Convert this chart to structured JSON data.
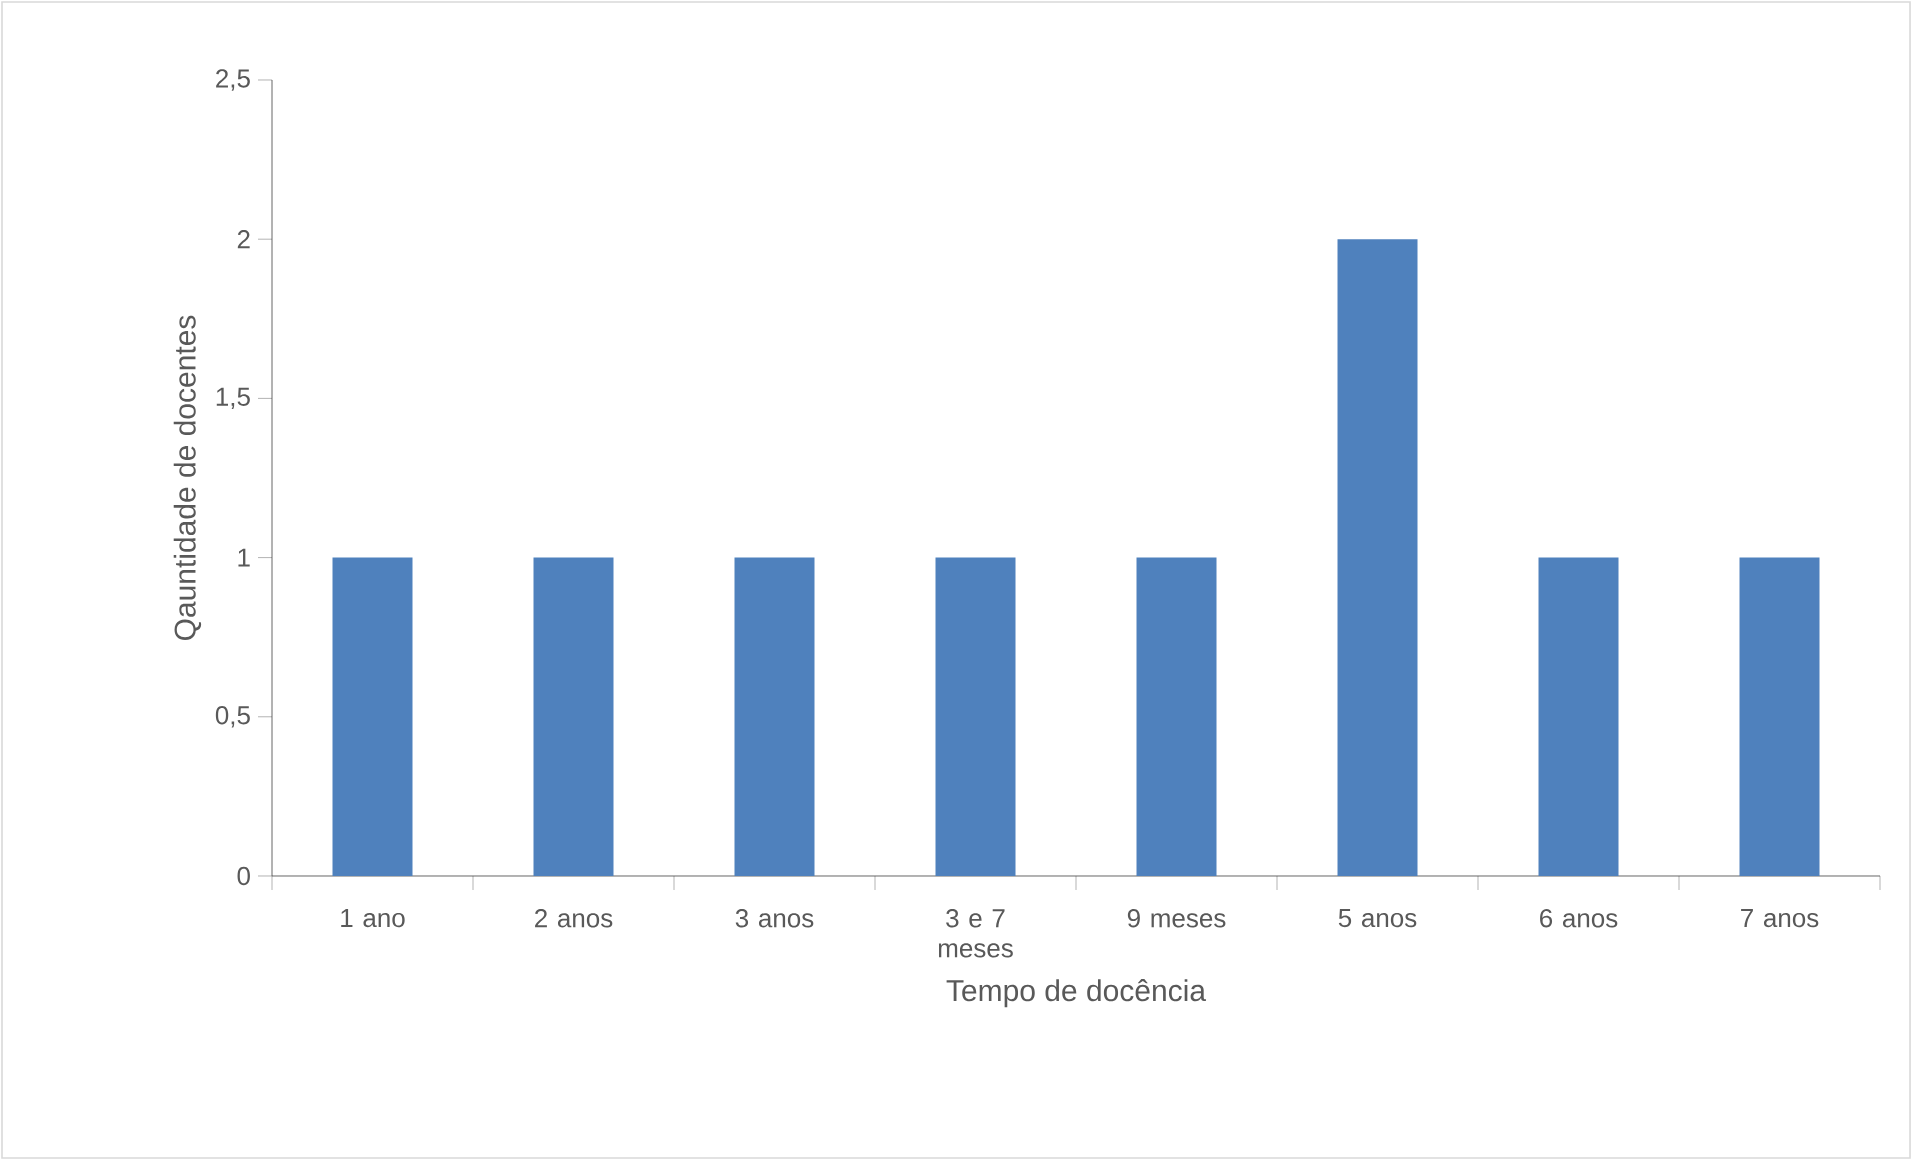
{
  "chart_data": {
    "type": "bar",
    "xlabel": "Tempo de docência",
    "ylabel": "Qauntidade de docentes",
    "categories": [
      "1 ano",
      "2 anos",
      "3 anos",
      "3 e 7 meses",
      "9 meses",
      "5 anos",
      "6 anos",
      "7 anos"
    ],
    "values": [
      1,
      1,
      1,
      1,
      1,
      2,
      1,
      1
    ],
    "color": "#4f81bd",
    "ylim": [
      0,
      2.5
    ],
    "yticks": [
      {
        "value": 0,
        "label": "0"
      },
      {
        "value": 0.5,
        "label": "0,5"
      },
      {
        "value": 1,
        "label": "1"
      },
      {
        "value": 1.5,
        "label": "1,5"
      },
      {
        "value": 2,
        "label": "2"
      },
      {
        "value": 2.5,
        "label": "2,5"
      }
    ],
    "grid": false
  }
}
